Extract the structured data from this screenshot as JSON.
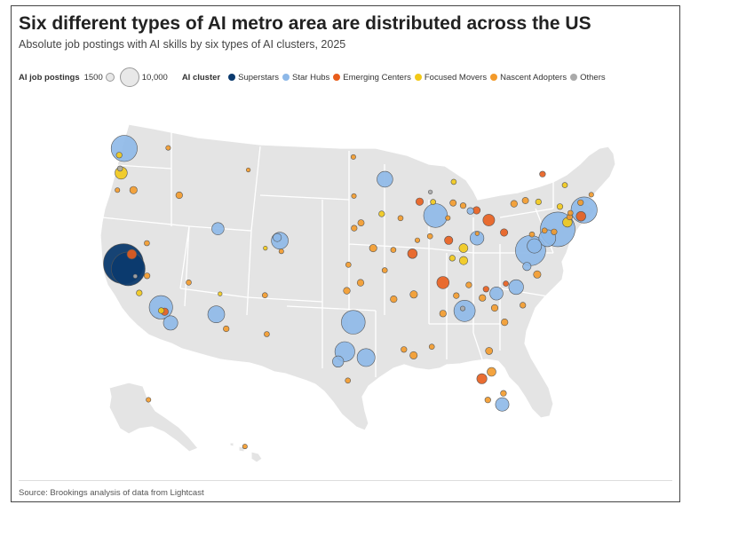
{
  "title": "Six different types of AI metro area are distributed across the US",
  "subtitle": "Absolute job postings with AI skills by six types of AI clusters, 2025",
  "legend": {
    "size_label": "AI job postings",
    "size_small": "1500",
    "size_large": "10,000",
    "cluster_label": "AI cluster",
    "clusters": [
      {
        "key": "superstars",
        "label": "Superstars",
        "color": "#0b3a6e"
      },
      {
        "key": "star_hubs",
        "label": "Star Hubs",
        "color": "#8db8e8"
      },
      {
        "key": "emerging",
        "label": "Emerging Centers",
        "color": "#e85d1c"
      },
      {
        "key": "focused",
        "label": "Focused Movers",
        "color": "#f2c918"
      },
      {
        "key": "nascent",
        "label": "Nascent Adopters",
        "color": "#f39a2a"
      },
      {
        "key": "others",
        "label": "Others",
        "color": "#aaaaaa"
      }
    ]
  },
  "source": "Source: Brookings analysis of data from Lightcast",
  "map_data": {
    "map_fill": "#e4e4e4",
    "border_color": "#ffffff",
    "metros": [
      {
        "lon": -122.42,
        "lat": 37.77,
        "cluster": "superstars",
        "value": 14000
      },
      {
        "lon": -121.89,
        "lat": 37.34,
        "cluster": "superstars",
        "value": 10000
      },
      {
        "lon": -122.33,
        "lat": 47.61,
        "cluster": "star_hubs",
        "value": 6000
      },
      {
        "lon": -74.0,
        "lat": 40.71,
        "cluster": "star_hubs",
        "value": 10500
      },
      {
        "lon": -71.06,
        "lat": 42.36,
        "cluster": "star_hubs",
        "value": 6000
      },
      {
        "lon": -77.03,
        "lat": 38.9,
        "cluster": "star_hubs",
        "value": 8000
      },
      {
        "lon": -75.16,
        "lat": 39.95,
        "cluster": "star_hubs",
        "value": 2500
      },
      {
        "lon": -76.61,
        "lat": 39.29,
        "cluster": "star_hubs",
        "value": 1800
      },
      {
        "lon": -87.63,
        "lat": 41.88,
        "cluster": "star_hubs",
        "value": 5000
      },
      {
        "lon": -118.24,
        "lat": 34.05,
        "cluster": "star_hubs",
        "value": 4800
      },
      {
        "lon": -117.16,
        "lat": 32.72,
        "cluster": "star_hubs",
        "value": 1800
      },
      {
        "lon": -97.74,
        "lat": 30.27,
        "cluster": "star_hubs",
        "value": 3500
      },
      {
        "lon": -96.8,
        "lat": 32.78,
        "cluster": "star_hubs",
        "value": 5000
      },
      {
        "lon": -95.37,
        "lat": 29.76,
        "cluster": "star_hubs",
        "value": 2800
      },
      {
        "lon": -98.49,
        "lat": 29.42,
        "cluster": "star_hubs",
        "value": 1100
      },
      {
        "lon": -84.39,
        "lat": 33.75,
        "cluster": "star_hubs",
        "value": 4000
      },
      {
        "lon": -112.07,
        "lat": 33.45,
        "cluster": "star_hubs",
        "value": 2500
      },
      {
        "lon": -104.99,
        "lat": 39.74,
        "cluster": "star_hubs",
        "value": 2500
      },
      {
        "lon": -105.27,
        "lat": 40.01,
        "cluster": "star_hubs",
        "value": 600
      },
      {
        "lon": -111.89,
        "lat": 40.76,
        "cluster": "star_hubs",
        "value": 1300
      },
      {
        "lon": -93.27,
        "lat": 44.98,
        "cluster": "star_hubs",
        "value": 2200
      },
      {
        "lon": -78.64,
        "lat": 35.78,
        "cluster": "star_hubs",
        "value": 1900
      },
      {
        "lon": -80.84,
        "lat": 35.23,
        "cluster": "star_hubs",
        "value": 1500
      },
      {
        "lon": -80.19,
        "lat": 25.76,
        "cluster": "star_hubs",
        "value": 1600
      },
      {
        "lon": -83.0,
        "lat": 39.96,
        "cluster": "star_hubs",
        "value": 1700
      },
      {
        "lon": -77.44,
        "lat": 37.54,
        "cluster": "star_hubs",
        "value": 600
      },
      {
        "lon": -83.74,
        "lat": 42.28,
        "cluster": "star_hubs",
        "value": 400
      },
      {
        "lon": -82.46,
        "lat": 27.95,
        "cluster": "emerging",
        "value": 900
      },
      {
        "lon": -86.8,
        "lat": 36.16,
        "cluster": "emerging",
        "value": 1300
      },
      {
        "lon": -90.2,
        "lat": 38.63,
        "cluster": "emerging",
        "value": 800
      },
      {
        "lon": -81.69,
        "lat": 41.5,
        "cluster": "emerging",
        "value": 1200
      },
      {
        "lon": -71.41,
        "lat": 41.82,
        "cluster": "emerging",
        "value": 800
      },
      {
        "lon": -121.49,
        "lat": 38.58,
        "cluster": "emerging",
        "value": 800
      },
      {
        "lon": -117.83,
        "lat": 33.68,
        "cluster": "emerging",
        "value": 500
      },
      {
        "lon": -79.99,
        "lat": 40.44,
        "cluster": "emerging",
        "value": 500
      },
      {
        "lon": -86.16,
        "lat": 39.77,
        "cluster": "emerging",
        "value": 600
      },
      {
        "lon": -83.05,
        "lat": 42.33,
        "cluster": "emerging",
        "value": 500
      },
      {
        "lon": -89.4,
        "lat": 43.07,
        "cluster": "emerging",
        "value": 500
      },
      {
        "lon": -75.7,
        "lat": 45.42,
        "cluster": "emerging",
        "value": 300
      },
      {
        "lon": -82.0,
        "lat": 35.6,
        "cluster": "emerging",
        "value": 300
      },
      {
        "lon": -79.79,
        "lat": 36.07,
        "cluster": "emerging",
        "value": 250
      },
      {
        "lon": -122.68,
        "lat": 45.52,
        "cluster": "focused",
        "value": 1300
      },
      {
        "lon": -122.9,
        "lat": 47.04,
        "cluster": "focused",
        "value": 300
      },
      {
        "lon": -73.21,
        "lat": 44.48,
        "cluster": "focused",
        "value": 250
      },
      {
        "lon": -72.93,
        "lat": 41.31,
        "cluster": "focused",
        "value": 800
      },
      {
        "lon": -84.51,
        "lat": 39.1,
        "cluster": "focused",
        "value": 700
      },
      {
        "lon": -84.5,
        "lat": 38.04,
        "cluster": "focused",
        "value": 600
      },
      {
        "lon": -85.76,
        "lat": 38.25,
        "cluster": "focused",
        "value": 300
      },
      {
        "lon": -73.76,
        "lat": 42.65,
        "cluster": "focused",
        "value": 300
      },
      {
        "lon": -76.15,
        "lat": 43.05,
        "cluster": "focused",
        "value": 300
      },
      {
        "lon": -120.66,
        "lat": 35.28,
        "cluster": "focused",
        "value": 300
      },
      {
        "lon": -118.2,
        "lat": 33.77,
        "cluster": "focused",
        "value": 300
      },
      {
        "lon": -93.63,
        "lat": 42.03,
        "cluster": "focused",
        "value": 300
      },
      {
        "lon": -85.6,
        "lat": 44.76,
        "cluster": "focused",
        "value": 250
      },
      {
        "lon": -87.9,
        "lat": 43.04,
        "cluster": "focused",
        "value": 250
      },
      {
        "lon": -111.65,
        "lat": 35.2,
        "cluster": "focused",
        "value": 150
      },
      {
        "lon": -116.2,
        "lat": 43.62,
        "cluster": "nascent",
        "value": 400
      },
      {
        "lon": -97.52,
        "lat": 35.47,
        "cluster": "nascent",
        "value": 400
      },
      {
        "lon": -94.58,
        "lat": 39.1,
        "cluster": "nascent",
        "value": 500
      },
      {
        "lon": -95.99,
        "lat": 36.15,
        "cluster": "nascent",
        "value": 400
      },
      {
        "lon": -92.29,
        "lat": 34.75,
        "cluster": "nascent",
        "value": 400
      },
      {
        "lon": -90.05,
        "lat": 35.15,
        "cluster": "nascent",
        "value": 500
      },
      {
        "lon": -86.8,
        "lat": 33.52,
        "cluster": "nascent",
        "value": 400
      },
      {
        "lon": -90.07,
        "lat": 29.95,
        "cluster": "nascent",
        "value": 500
      },
      {
        "lon": -91.15,
        "lat": 30.45,
        "cluster": "nascent",
        "value": 300
      },
      {
        "lon": -81.66,
        "lat": 30.33,
        "cluster": "nascent",
        "value": 450
      },
      {
        "lon": -81.38,
        "lat": 28.54,
        "cluster": "nascent",
        "value": 700
      },
      {
        "lon": -80.05,
        "lat": 26.71,
        "cluster": "nascent",
        "value": 300
      },
      {
        "lon": -81.8,
        "lat": 26.14,
        "cluster": "nascent",
        "value": 300
      },
      {
        "lon": -79.93,
        "lat": 32.78,
        "cluster": "nascent",
        "value": 400
      },
      {
        "lon": -81.03,
        "lat": 34.0,
        "cluster": "nascent",
        "value": 400
      },
      {
        "lon": -82.4,
        "lat": 34.85,
        "cluster": "nascent",
        "value": 400
      },
      {
        "lon": -76.29,
        "lat": 36.85,
        "cluster": "nascent",
        "value": 500
      },
      {
        "lon": -77.9,
        "lat": 34.23,
        "cluster": "nascent",
        "value": 300
      },
      {
        "lon": -85.31,
        "lat": 35.05,
        "cluster": "nascent",
        "value": 300
      },
      {
        "lon": -83.92,
        "lat": 35.96,
        "cluster": "nascent",
        "value": 300
      },
      {
        "lon": -88.04,
        "lat": 30.69,
        "cluster": "nascent",
        "value": 250
      },
      {
        "lon": -106.65,
        "lat": 35.08,
        "cluster": "nascent",
        "value": 250
      },
      {
        "lon": -106.44,
        "lat": 31.76,
        "cluster": "nascent",
        "value": 250
      },
      {
        "lon": -97.4,
        "lat": 27.8,
        "cluster": "nascent",
        "value": 250
      },
      {
        "lon": -95.94,
        "lat": 41.26,
        "cluster": "nascent",
        "value": 350
      },
      {
        "lon": -96.7,
        "lat": 40.81,
        "cluster": "nascent",
        "value": 300
      },
      {
        "lon": -97.34,
        "lat": 37.69,
        "cluster": "nascent",
        "value": 250
      },
      {
        "lon": -93.29,
        "lat": 37.21,
        "cluster": "nascent",
        "value": 250
      },
      {
        "lon": -92.33,
        "lat": 38.95,
        "cluster": "nascent",
        "value": 250
      },
      {
        "lon": -91.53,
        "lat": 41.66,
        "cluster": "nascent",
        "value": 250
      },
      {
        "lon": -88.24,
        "lat": 40.12,
        "cluster": "nascent",
        "value": 250
      },
      {
        "lon": -85.67,
        "lat": 42.96,
        "cluster": "nascent",
        "value": 350
      },
      {
        "lon": -84.55,
        "lat": 42.73,
        "cluster": "nascent",
        "value": 300
      },
      {
        "lon": -78.88,
        "lat": 42.89,
        "cluster": "nascent",
        "value": 400
      },
      {
        "lon": -77.61,
        "lat": 43.16,
        "cluster": "nascent",
        "value": 350
      },
      {
        "lon": -76.88,
        "lat": 40.27,
        "cluster": "nascent",
        "value": 250
      },
      {
        "lon": -75.47,
        "lat": 40.6,
        "cluster": "nascent",
        "value": 250
      },
      {
        "lon": -74.41,
        "lat": 40.49,
        "cluster": "nascent",
        "value": 300
      },
      {
        "lon": -72.68,
        "lat": 41.76,
        "cluster": "nascent",
        "value": 300
      },
      {
        "lon": -72.59,
        "lat": 42.1,
        "cluster": "nascent",
        "value": 250
      },
      {
        "lon": -70.26,
        "lat": 43.66,
        "cluster": "nascent",
        "value": 200
      },
      {
        "lon": -71.46,
        "lat": 42.99,
        "cluster": "nascent",
        "value": 300
      },
      {
        "lon": -119.79,
        "lat": 36.74,
        "cluster": "nascent",
        "value": 300
      },
      {
        "lon": -119.81,
        "lat": 39.53,
        "cluster": "nascent",
        "value": 250
      },
      {
        "lon": -115.14,
        "lat": 36.17,
        "cluster": "nascent",
        "value": 250
      },
      {
        "lon": -110.97,
        "lat": 32.22,
        "cluster": "nascent",
        "value": 300
      },
      {
        "lon": -117.43,
        "lat": 47.66,
        "cluster": "nascent",
        "value": 200
      },
      {
        "lon": -123.09,
        "lat": 44.05,
        "cluster": "nascent",
        "value": 200
      },
      {
        "lon": -108.5,
        "lat": 45.78,
        "cluster": "nascent",
        "value": 150
      },
      {
        "lon": -121.3,
        "lat": 44.06,
        "cluster": "nascent",
        "value": 500
      },
      {
        "lon": -96.73,
        "lat": 43.55,
        "cluster": "nascent",
        "value": 200
      },
      {
        "lon": -96.79,
        "lat": 46.88,
        "cluster": "nascent",
        "value": 200
      },
      {
        "lon": -149.9,
        "lat": 61.22,
        "cluster": "nascent",
        "value": 200
      },
      {
        "lon": -157.86,
        "lat": 21.31,
        "cluster": "nascent",
        "value": 200
      },
      {
        "lon": -89.65,
        "lat": 39.78,
        "cluster": "nascent",
        "value": 200
      },
      {
        "lon": -86.25,
        "lat": 41.68,
        "cluster": "nascent",
        "value": 200
      },
      {
        "lon": -82.99,
        "lat": 40.35,
        "cluster": "nascent",
        "value": 150
      },
      {
        "lon": -122.8,
        "lat": 45.9,
        "cluster": "others",
        "value": 250
      },
      {
        "lon": -84.6,
        "lat": 33.95,
        "cluster": "others",
        "value": 200
      },
      {
        "lon": -88.2,
        "lat": 43.9,
        "cluster": "others",
        "value": 150
      },
      {
        "lon": -121.1,
        "lat": 36.7,
        "cluster": "others",
        "value": 150
      },
      {
        "lon": -104.82,
        "lat": 38.83,
        "cluster": "nascent",
        "value": 200
      },
      {
        "lon": -106.6,
        "lat": 39.1,
        "cluster": "focused",
        "value": 150
      }
    ]
  }
}
